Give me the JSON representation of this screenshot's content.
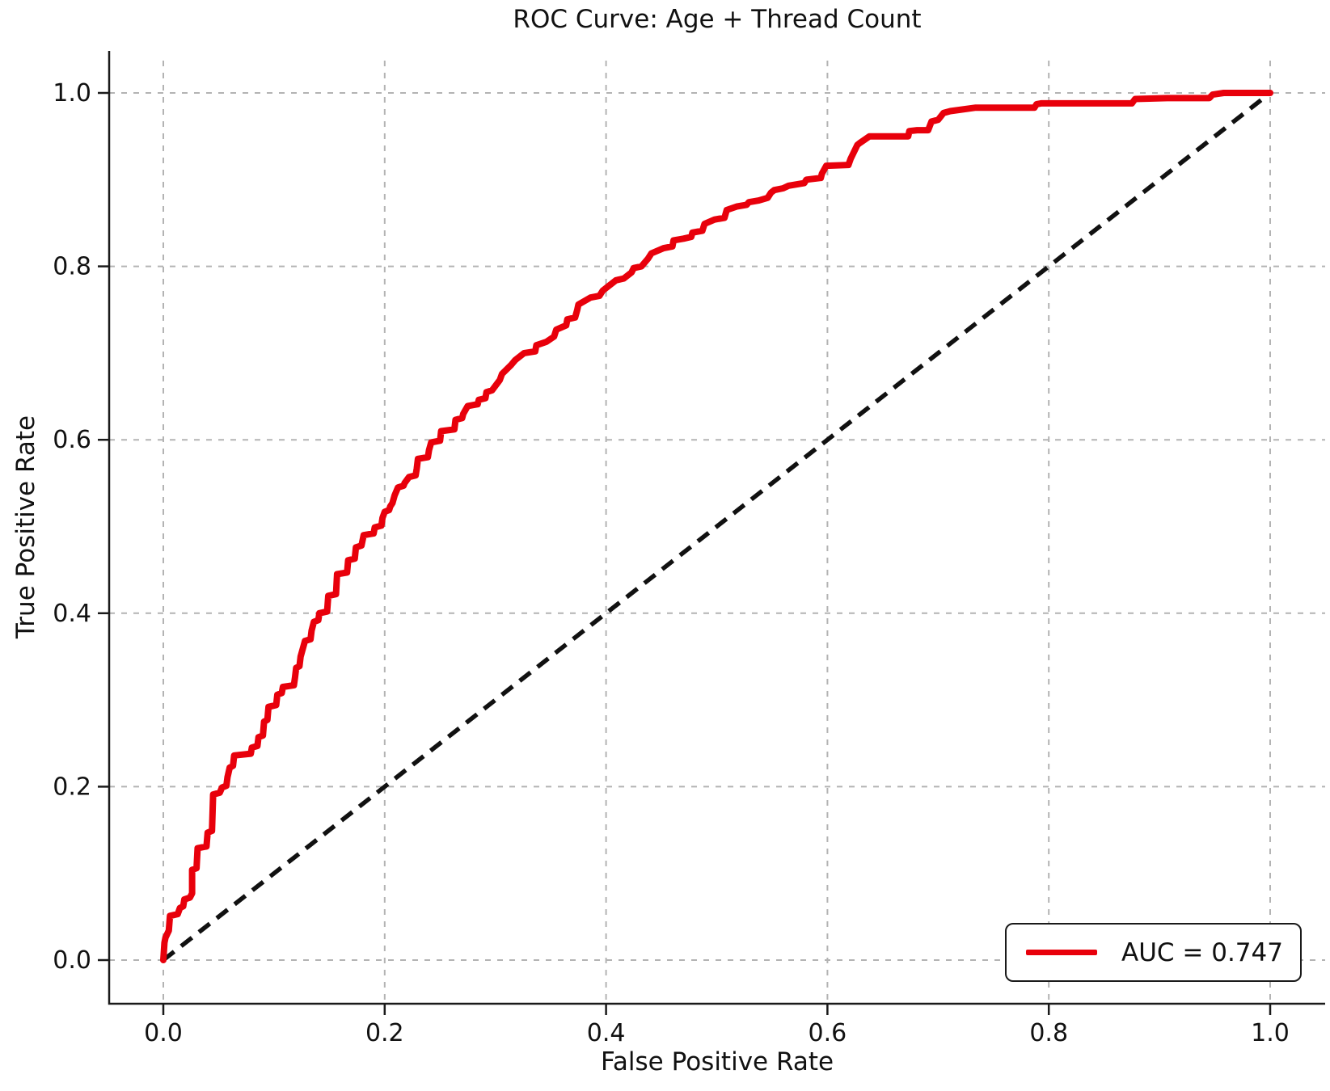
{
  "chart_data": {
    "type": "line",
    "title": "ROC Curve: Age + Thread Count",
    "xlabel": "False Positive Rate",
    "ylabel": "True Positive Rate",
    "legend_label": "AUC = 0.747",
    "legend_position": "lower right",
    "auc": 0.747,
    "xlim": [
      -0.05,
      1.05
    ],
    "ylim": [
      -0.05,
      1.05
    ],
    "x_ticks": [
      0.0,
      0.2,
      0.4,
      0.6,
      0.8,
      1.0
    ],
    "y_ticks": [
      0.0,
      0.2,
      0.4,
      0.6,
      0.8,
      1.0
    ],
    "grid": true,
    "colors": {
      "roc": "#e8000b",
      "chance": "#111111",
      "grid": "#b3b3b3",
      "axis": "#1a1a1a"
    },
    "series": [
      {
        "name": "ROC curve",
        "style": "solid",
        "points": [
          [
            0.0,
            0.0
          ],
          [
            0.001,
            0.02
          ],
          [
            0.002,
            0.026
          ],
          [
            0.005,
            0.034
          ],
          [
            0.006,
            0.051
          ],
          [
            0.013,
            0.053
          ],
          [
            0.015,
            0.06
          ],
          [
            0.018,
            0.062
          ],
          [
            0.019,
            0.07
          ],
          [
            0.024,
            0.072
          ],
          [
            0.026,
            0.077
          ],
          [
            0.026,
            0.104
          ],
          [
            0.03,
            0.106
          ],
          [
            0.031,
            0.129
          ],
          [
            0.039,
            0.131
          ],
          [
            0.04,
            0.147
          ],
          [
            0.044,
            0.149
          ],
          [
            0.045,
            0.191
          ],
          [
            0.051,
            0.193
          ],
          [
            0.053,
            0.199
          ],
          [
            0.057,
            0.201
          ],
          [
            0.058,
            0.211
          ],
          [
            0.06,
            0.222
          ],
          [
            0.063,
            0.224
          ],
          [
            0.064,
            0.236
          ],
          [
            0.079,
            0.238
          ],
          [
            0.08,
            0.245
          ],
          [
            0.085,
            0.247
          ],
          [
            0.086,
            0.257
          ],
          [
            0.09,
            0.259
          ],
          [
            0.091,
            0.275
          ],
          [
            0.094,
            0.277
          ],
          [
            0.095,
            0.292
          ],
          [
            0.102,
            0.294
          ],
          [
            0.103,
            0.306
          ],
          [
            0.107,
            0.308
          ],
          [
            0.108,
            0.315
          ],
          [
            0.118,
            0.317
          ],
          [
            0.119,
            0.326
          ],
          [
            0.12,
            0.337
          ],
          [
            0.123,
            0.339
          ],
          [
            0.124,
            0.35
          ],
          [
            0.128,
            0.368
          ],
          [
            0.133,
            0.37
          ],
          [
            0.134,
            0.38
          ],
          [
            0.136,
            0.39
          ],
          [
            0.14,
            0.392
          ],
          [
            0.141,
            0.4
          ],
          [
            0.148,
            0.402
          ],
          [
            0.149,
            0.42
          ],
          [
            0.156,
            0.422
          ],
          [
            0.157,
            0.445
          ],
          [
            0.166,
            0.447
          ],
          [
            0.167,
            0.461
          ],
          [
            0.173,
            0.463
          ],
          [
            0.174,
            0.476
          ],
          [
            0.179,
            0.478
          ],
          [
            0.181,
            0.49
          ],
          [
            0.19,
            0.492
          ],
          [
            0.191,
            0.499
          ],
          [
            0.197,
            0.501
          ],
          [
            0.198,
            0.51
          ],
          [
            0.2,
            0.517
          ],
          [
            0.204,
            0.519
          ],
          [
            0.205,
            0.523
          ],
          [
            0.207,
            0.527
          ],
          [
            0.209,
            0.536
          ],
          [
            0.212,
            0.545
          ],
          [
            0.217,
            0.547
          ],
          [
            0.218,
            0.55
          ],
          [
            0.222,
            0.557
          ],
          [
            0.228,
            0.559
          ],
          [
            0.229,
            0.567
          ],
          [
            0.23,
            0.578
          ],
          [
            0.239,
            0.58
          ],
          [
            0.24,
            0.588
          ],
          [
            0.242,
            0.597
          ],
          [
            0.25,
            0.599
          ],
          [
            0.251,
            0.61
          ],
          [
            0.263,
            0.612
          ],
          [
            0.264,
            0.623
          ],
          [
            0.27,
            0.625
          ],
          [
            0.271,
            0.63
          ],
          [
            0.275,
            0.639
          ],
          [
            0.284,
            0.641
          ],
          [
            0.285,
            0.646
          ],
          [
            0.291,
            0.648
          ],
          [
            0.292,
            0.655
          ],
          [
            0.297,
            0.657
          ],
          [
            0.304,
            0.669
          ],
          [
            0.306,
            0.676
          ],
          [
            0.314,
            0.686
          ],
          [
            0.318,
            0.692
          ],
          [
            0.326,
            0.7
          ],
          [
            0.336,
            0.702
          ],
          [
            0.337,
            0.709
          ],
          [
            0.346,
            0.713
          ],
          [
            0.353,
            0.719
          ],
          [
            0.355,
            0.727
          ],
          [
            0.364,
            0.732
          ],
          [
            0.365,
            0.739
          ],
          [
            0.372,
            0.741
          ],
          [
            0.374,
            0.75
          ],
          [
            0.375,
            0.756
          ],
          [
            0.386,
            0.764
          ],
          [
            0.394,
            0.766
          ],
          [
            0.397,
            0.772
          ],
          [
            0.409,
            0.784
          ],
          [
            0.416,
            0.786
          ],
          [
            0.423,
            0.793
          ],
          [
            0.425,
            0.798
          ],
          [
            0.432,
            0.8
          ],
          [
            0.438,
            0.809
          ],
          [
            0.441,
            0.815
          ],
          [
            0.452,
            0.821
          ],
          [
            0.46,
            0.823
          ],
          [
            0.461,
            0.83
          ],
          [
            0.47,
            0.832
          ],
          [
            0.477,
            0.834
          ],
          [
            0.478,
            0.839
          ],
          [
            0.487,
            0.841
          ],
          [
            0.489,
            0.849
          ],
          [
            0.498,
            0.854
          ],
          [
            0.507,
            0.856
          ],
          [
            0.509,
            0.865
          ],
          [
            0.518,
            0.869
          ],
          [
            0.527,
            0.871
          ],
          [
            0.529,
            0.874
          ],
          [
            0.538,
            0.876
          ],
          [
            0.546,
            0.879
          ],
          [
            0.549,
            0.885
          ],
          [
            0.552,
            0.888
          ],
          [
            0.56,
            0.89
          ],
          [
            0.565,
            0.893
          ],
          [
            0.579,
            0.896
          ],
          [
            0.581,
            0.9
          ],
          [
            0.594,
            0.902
          ],
          [
            0.595,
            0.907
          ],
          [
            0.599,
            0.916
          ],
          [
            0.619,
            0.917
          ],
          [
            0.621,
            0.924
          ],
          [
            0.627,
            0.94
          ],
          [
            0.629,
            0.942
          ],
          [
            0.638,
            0.95
          ],
          [
            0.673,
            0.95
          ],
          [
            0.674,
            0.956
          ],
          [
            0.681,
            0.957
          ],
          [
            0.691,
            0.957
          ],
          [
            0.694,
            0.967
          ],
          [
            0.7,
            0.969
          ],
          [
            0.705,
            0.977
          ],
          [
            0.711,
            0.979
          ],
          [
            0.734,
            0.983
          ],
          [
            0.787,
            0.983
          ],
          [
            0.789,
            0.987
          ],
          [
            0.793,
            0.988
          ],
          [
            0.875,
            0.988
          ],
          [
            0.878,
            0.993
          ],
          [
            0.907,
            0.994
          ],
          [
            0.945,
            0.994
          ],
          [
            0.948,
            0.998
          ],
          [
            0.958,
            1.0
          ],
          [
            1.0,
            1.0
          ]
        ]
      },
      {
        "name": "Chance diagonal",
        "style": "dashed",
        "points": [
          [
            0.0,
            0.0
          ],
          [
            1.0,
            1.0
          ]
        ]
      }
    ]
  }
}
